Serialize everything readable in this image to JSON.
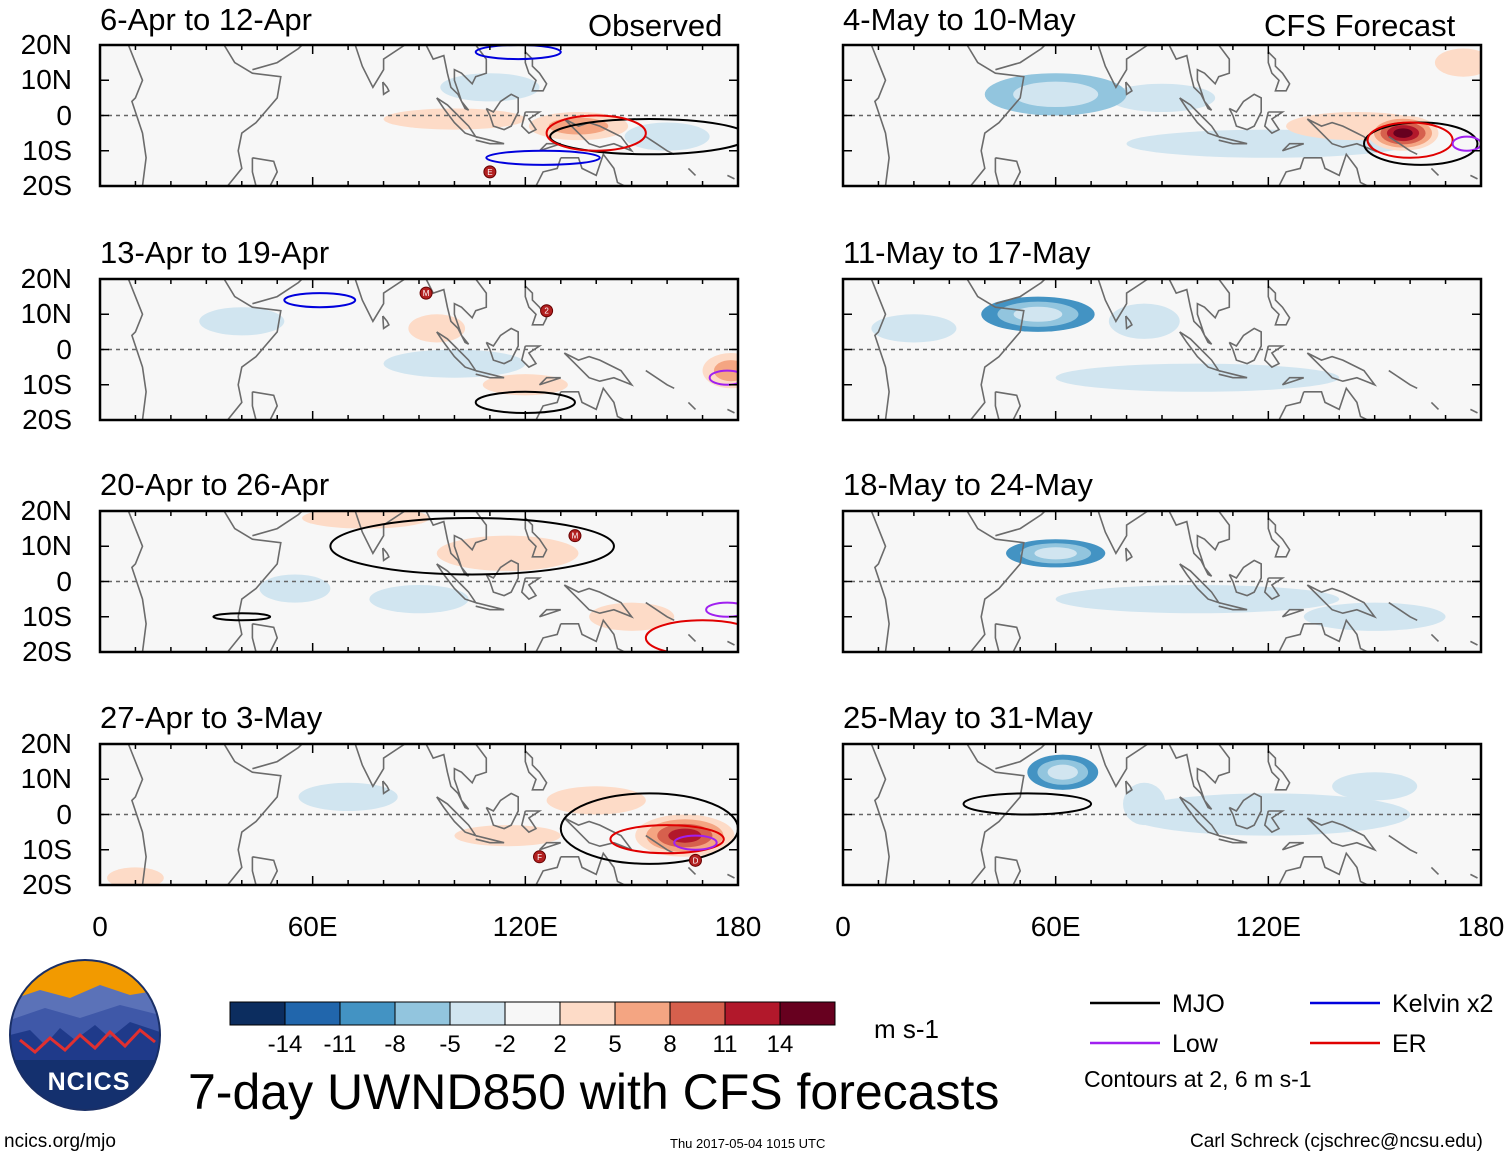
{
  "chart_data": {
    "type": "heatmap",
    "title": "7-day UWND850 with CFS forecasts",
    "variable": "850-hPa zonal wind anomaly",
    "units": "m s-1",
    "columns": [
      {
        "label": "Observed",
        "panels": [
          "6-Apr to 12-Apr",
          "13-Apr to 19-Apr",
          "20-Apr to 26-Apr",
          "27-Apr to 3-May"
        ]
      },
      {
        "label": "CFS Forecast",
        "panels": [
          "4-May to 10-May",
          "11-May to 17-May",
          "18-May to 24-May",
          "25-May to 31-May"
        ]
      }
    ],
    "x_ticks": [
      "0",
      "60E",
      "120E",
      "180"
    ],
    "y_ticks": [
      "20N",
      "10N",
      "0",
      "10S",
      "20S"
    ],
    "xlim": [
      0,
      180
    ],
    "ylim": [
      -20,
      20
    ],
    "colorbar": {
      "levels": [
        "-14",
        "-11",
        "-8",
        "-5",
        "-2",
        "2",
        "5",
        "8",
        "11",
        "14"
      ],
      "colors": [
        "#0c2d5f",
        "#2166ac",
        "#4393c3",
        "#92c5de",
        "#d1e5f0",
        "#f7f7f7",
        "#fddbc7",
        "#f4a582",
        "#d6604d",
        "#b2182b",
        "#67001f"
      ]
    },
    "legend": [
      {
        "name": "MJO",
        "color": "#000000"
      },
      {
        "name": "Kelvin x2",
        "color": "#0000dd"
      },
      {
        "name": "Low",
        "color": "#a020f0"
      },
      {
        "name": "ER",
        "color": "#e00000"
      }
    ],
    "contour_note": "Contours at 2, 6 m s-1",
    "anomalies": [
      [
        [
          [
            135,
            -3,
            14,
            4,
            5
          ],
          [
            100,
            -1,
            20,
            3,
            2
          ],
          [
            160,
            -6,
            12,
            4,
            -3
          ],
          [
            110,
            8,
            14,
            4,
            -2
          ]
        ],
        [
          [
            95,
            6,
            8,
            4,
            4
          ],
          [
            120,
            -10,
            12,
            3,
            4
          ],
          [
            178,
            -6,
            8,
            5,
            5
          ],
          [
            100,
            -4,
            20,
            4,
            -3
          ],
          [
            40,
            8,
            12,
            4,
            -2
          ]
        ],
        [
          [
            75,
            18,
            18,
            3,
            4
          ],
          [
            115,
            8,
            20,
            5,
            3
          ],
          [
            150,
            -10,
            12,
            4,
            3
          ],
          [
            90,
            -5,
            14,
            4,
            -3
          ],
          [
            55,
            -2,
            10,
            4,
            -2
          ]
        ],
        [
          [
            165,
            -6,
            14,
            6,
            11
          ],
          [
            115,
            -6,
            15,
            3,
            4
          ],
          [
            140,
            4,
            14,
            4,
            2
          ],
          [
            70,
            5,
            14,
            4,
            -3
          ],
          [
            10,
            -18,
            8,
            3,
            4
          ]
        ]
      ],
      [
        [
          [
            158,
            -5,
            10,
            5,
            14
          ],
          [
            145,
            -3,
            20,
            4,
            4
          ],
          [
            60,
            6,
            20,
            6,
            -5
          ],
          [
            90,
            5,
            15,
            4,
            -4
          ],
          [
            120,
            -8,
            40,
            4,
            -2
          ],
          [
            175,
            15,
            8,
            4,
            4
          ]
        ],
        [
          [
            55,
            10,
            16,
            5,
            -8
          ],
          [
            85,
            8,
            10,
            5,
            -4
          ],
          [
            100,
            -8,
            40,
            4,
            -2
          ],
          [
            20,
            6,
            12,
            4,
            -2
          ]
        ],
        [
          [
            60,
            8,
            14,
            4,
            -8
          ],
          [
            100,
            -5,
            40,
            4,
            -2
          ],
          [
            150,
            -10,
            20,
            4,
            -2
          ]
        ],
        [
          [
            62,
            12,
            10,
            5,
            -8
          ],
          [
            85,
            3,
            6,
            6,
            -4
          ],
          [
            120,
            0,
            40,
            6,
            -2
          ],
          [
            150,
            8,
            12,
            4,
            -2
          ]
        ]
      ]
    ],
    "contours": [
      [
        [
          {
            "t": "MJO",
            "c": [
              155,
              -6
            ],
            "r": [
              28,
              5
            ]
          },
          {
            "t": "ER",
            "c": [
              140,
              -5
            ],
            "r": [
              14,
              5
            ]
          },
          {
            "t": "Kelvin x2",
            "c": [
              125,
              -12
            ],
            "r": [
              16,
              2
            ]
          },
          {
            "t": "Kelvin x2",
            "c": [
              118,
              18
            ],
            "r": [
              12,
              2
            ]
          }
        ],
        [
          {
            "t": "MJO",
            "c": [
              120,
              -15
            ],
            "r": [
              14,
              3
            ]
          },
          {
            "t": "Kelvin x2",
            "c": [
              62,
              14
            ],
            "r": [
              10,
              2
            ]
          },
          {
            "t": "Low",
            "c": [
              177,
              -8
            ],
            "r": [
              5,
              2
            ]
          }
        ],
        [
          {
            "t": "MJO",
            "c": [
              105,
              10
            ],
            "r": [
              40,
              8
            ]
          },
          {
            "t": "MJO",
            "c": [
              40,
              -10
            ],
            "r": [
              8,
              1
            ]
          },
          {
            "t": "ER",
            "c": [
              170,
              -16
            ],
            "r": [
              16,
              5
            ]
          },
          {
            "t": "Low",
            "c": [
              177,
              -8
            ],
            "r": [
              6,
              2
            ]
          }
        ],
        [
          {
            "t": "MJO",
            "c": [
              155,
              -4
            ],
            "r": [
              25,
              10
            ]
          },
          {
            "t": "ER",
            "c": [
              160,
              -7
            ],
            "r": [
              16,
              4
            ]
          },
          {
            "t": "Low",
            "c": [
              168,
              -8
            ],
            "r": [
              6,
              2
            ]
          }
        ]
      ],
      [
        [
          {
            "t": "MJO",
            "c": [
              163,
              -8
            ],
            "r": [
              16,
              6
            ]
          },
          {
            "t": "ER",
            "c": [
              160,
              -7
            ],
            "r": [
              12,
              5
            ]
          },
          {
            "t": "Low",
            "c": [
              176,
              -8
            ],
            "r": [
              4,
              2
            ]
          }
        ],
        [],
        [],
        [
          {
            "t": "MJO",
            "c": [
              52,
              3
            ],
            "r": [
              18,
              3
            ]
          }
        ]
      ]
    ],
    "storms": [
      [
        [
          {
            "c": [
              110,
              -16
            ],
            "label": "E"
          }
        ],
        [
          {
            "c": [
              92,
              16
            ],
            "label": "M"
          },
          {
            "c": [
              126,
              11
            ],
            "label": "2"
          }
        ],
        [
          {
            "c": [
              134,
              13
            ],
            "label": "M"
          }
        ],
        [
          {
            "c": [
              124,
              -12
            ],
            "label": "F"
          },
          {
            "c": [
              168,
              -13
            ],
            "label": "D"
          }
        ]
      ],
      [
        [],
        [],
        [],
        []
      ]
    ]
  },
  "logo": {
    "text": "NCICS"
  },
  "footer": {
    "site": "ncics.org/mjo",
    "timestamp": "Thu 2017-05-04 1015 UTC",
    "author": "Carl Schreck (cjschrec@ncsu.edu)"
  }
}
